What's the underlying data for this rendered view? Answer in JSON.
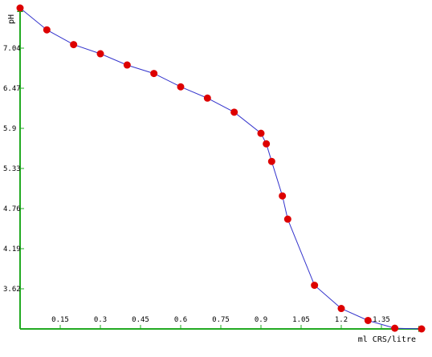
{
  "chart_data": {
    "type": "line",
    "title": "",
    "xlabel": "ml CRS/litre",
    "ylabel": "pH",
    "xlim": [
      0,
      1.5
    ],
    "ylim": [
      3.05,
      7.61
    ],
    "grid": false,
    "legend": "none",
    "x_ticks": [
      "0.15",
      "0.3",
      "0.45",
      "0.6",
      "0.75",
      "0.9",
      "1.05",
      "1.2",
      "1.35"
    ],
    "y_ticks": [
      "7.04",
      "6.47",
      "5.9",
      "5.33",
      "4.76",
      "4.19",
      "3.62"
    ],
    "series": [
      {
        "x": [
          0.0,
          0.1,
          0.2,
          0.3,
          0.4,
          0.5,
          0.6,
          0.7,
          0.8,
          0.9,
          0.92,
          0.94,
          0.98,
          1.0,
          1.1,
          1.2,
          1.3,
          1.4,
          1.5
        ],
        "y": [
          7.61,
          7.3,
          7.09,
          6.96,
          6.8,
          6.68,
          6.49,
          6.33,
          6.13,
          5.83,
          5.68,
          5.43,
          4.94,
          4.61,
          3.67,
          3.34,
          3.17,
          3.06,
          3.05
        ]
      }
    ]
  },
  "colors": {
    "axis": "#22aa22",
    "line": "#3333cc",
    "marker": "#dd0000"
  }
}
